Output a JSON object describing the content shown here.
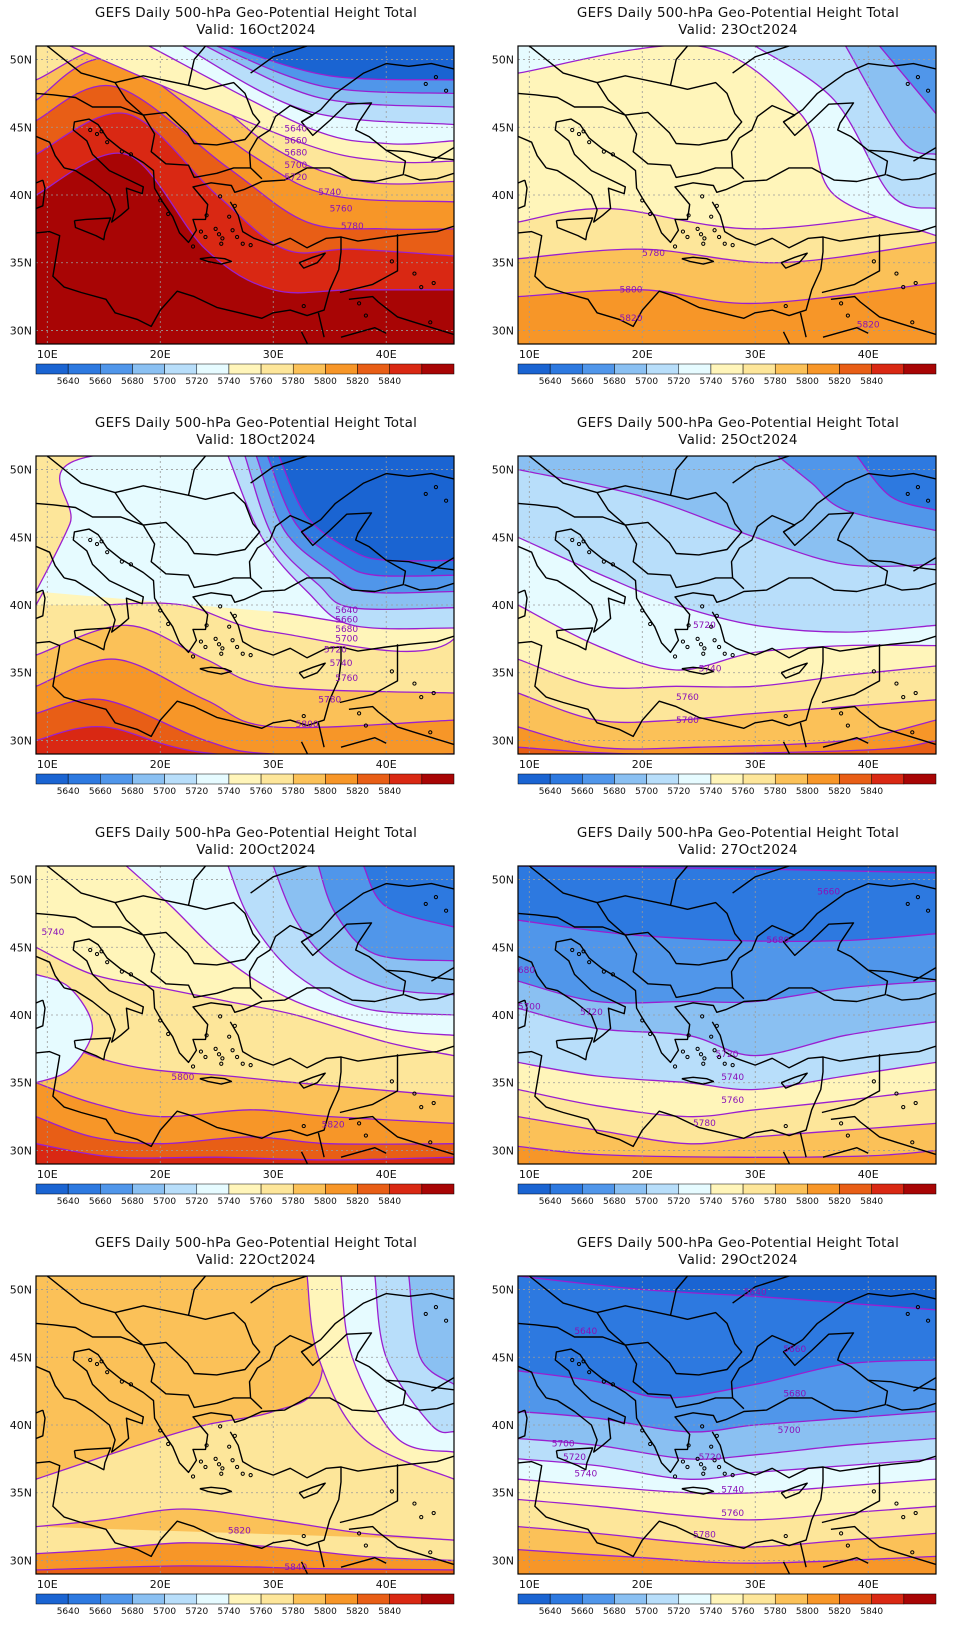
{
  "panels": [
    {
      "title": "GEFS Daily 500-hPa Geo-Potential Height Total",
      "valid": "Valid: 16Oct2024"
    },
    {
      "title": "GEFS Daily 500-hPa Geo-Potential Height Total",
      "valid": "Valid: 23Oct2024"
    },
    {
      "title": "GEFS Daily 500-hPa Geo-Potential Height Total",
      "valid": "Valid: 18Oct2024"
    },
    {
      "title": "GEFS Daily 500-hPa Geo-Potential Height Total",
      "valid": "Valid: 25Oct2024"
    },
    {
      "title": "GEFS Daily 500-hPa Geo-Potential Height Total",
      "valid": "Valid: 20Oct2024"
    },
    {
      "title": "GEFS Daily 500-hPa Geo-Potential Height Total",
      "valid": "Valid: 27Oct2024"
    },
    {
      "title": "GEFS Daily 500-hPa Geo-Potential Height Total",
      "valid": "Valid: 22Oct2024"
    },
    {
      "title": "GEFS Daily 500-hPa Geo-Potential Height Total",
      "valid": "Valid: 29Oct2024"
    }
  ],
  "axes": {
    "lat_labels": [
      "50N",
      "45N",
      "40N",
      "35N",
      "30N"
    ],
    "lon_labels": [
      "10E",
      "20E",
      "30E",
      "40E"
    ]
  },
  "colorbar": {
    "labels": [
      "5640",
      "5660",
      "5680",
      "5700",
      "5720",
      "5740",
      "5760",
      "5780",
      "5800",
      "5820",
      "5840"
    ],
    "colors": [
      "#1a64d2",
      "#2d79e0",
      "#5096ea",
      "#8ac0f2",
      "#b8defa",
      "#e6fbff",
      "#fff5ba",
      "#fde69a",
      "#fbc158",
      "#f79628",
      "#e85e16",
      "#d92813",
      "#a80505"
    ]
  },
  "contour_color": "#9a1fd0"
}
